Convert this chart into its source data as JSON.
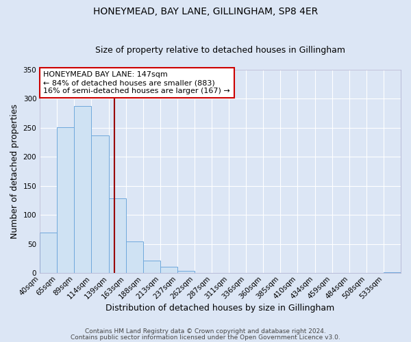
{
  "title": "HONEYMEAD, BAY LANE, GILLINGHAM, SP8 4ER",
  "subtitle": "Size of property relative to detached houses in Gillingham",
  "xlabel": "Distribution of detached houses by size in Gillingham",
  "ylabel": "Number of detached properties",
  "bar_labels": [
    "40sqm",
    "65sqm",
    "89sqm",
    "114sqm",
    "139sqm",
    "163sqm",
    "188sqm",
    "213sqm",
    "237sqm",
    "262sqm",
    "287sqm",
    "311sqm",
    "336sqm",
    "360sqm",
    "385sqm",
    "410sqm",
    "434sqm",
    "459sqm",
    "484sqm",
    "508sqm",
    "533sqm"
  ],
  "bar_values": [
    70,
    251,
    287,
    237,
    128,
    54,
    22,
    11,
    4,
    0,
    0,
    0,
    0,
    0,
    0,
    0,
    0,
    0,
    0,
    0,
    2
  ],
  "bar_color": "#cfe2f3",
  "bar_edge_color": "#6fa8dc",
  "ylim": [
    0,
    350
  ],
  "yticks": [
    0,
    50,
    100,
    150,
    200,
    250,
    300,
    350
  ],
  "vline_color": "#990000",
  "annotation_text": "HONEYMEAD BAY LANE: 147sqm\n← 84% of detached houses are smaller (883)\n16% of semi-detached houses are larger (167) →",
  "annotation_border_color": "#cc0000",
  "footer_line1": "Contains HM Land Registry data © Crown copyright and database right 2024.",
  "footer_line2": "Contains public sector information licensed under the Open Government Licence v3.0.",
  "bg_color": "#dce6f5",
  "title_fontsize": 10,
  "subtitle_fontsize": 9,
  "axis_label_fontsize": 9,
  "tick_fontsize": 7.5,
  "annotation_fontsize": 8,
  "footer_fontsize": 6.5
}
